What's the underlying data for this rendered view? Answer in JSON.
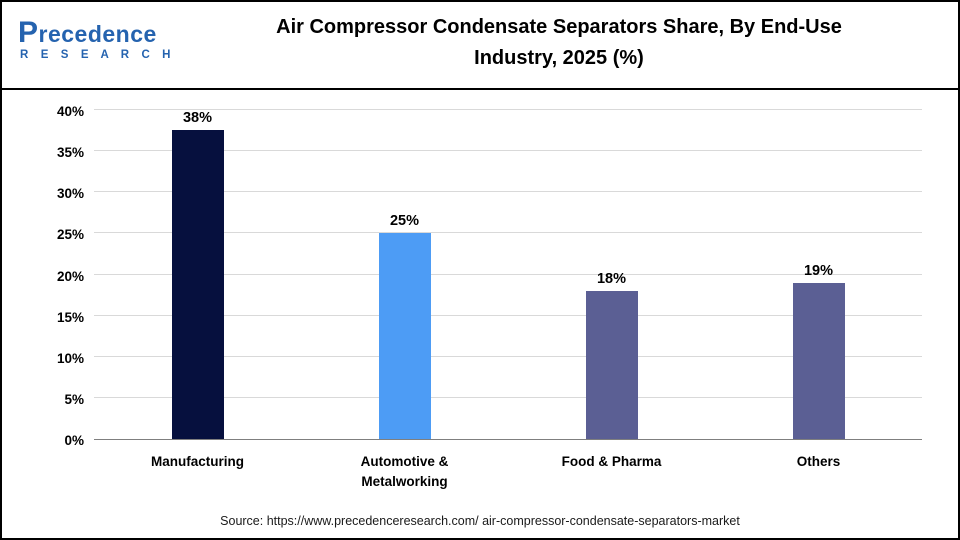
{
  "header": {
    "logo": {
      "name": "Precedence",
      "sub": "R E S E A R C H"
    },
    "title_line1": "Air Compressor Condensate Separators Share, By End-Use",
    "title_line2": "Industry, 2025 (%)"
  },
  "chart_data": {
    "type": "bar",
    "title": "Air Compressor Condensate Separators Share, By End-Use Industry, 2025 (%)",
    "categories": [
      "Manufacturing",
      "Automotive & Metalworking",
      "Food & Pharma",
      "Others"
    ],
    "values": [
      38,
      25,
      18,
      19
    ],
    "value_labels": [
      "38%",
      "25%",
      "18%",
      "19%"
    ],
    "bar_colors": [
      "#06103E",
      "#4D9CF5",
      "#5B5F94",
      "#5B5F94"
    ],
    "ylim": [
      0,
      40
    ],
    "ytick_step": 5,
    "ytick_suffix": "%",
    "grid": true,
    "legend": "none",
    "xlabel": "",
    "ylabel": ""
  },
  "footer": {
    "source": "Source: https://www.precedenceresearch.com/ air-compressor-condensate-separators-market"
  },
  "colors": {
    "brand_blue": "#2563af",
    "gridline": "#d9d9d9",
    "axis_line": "#7f7f7f"
  }
}
